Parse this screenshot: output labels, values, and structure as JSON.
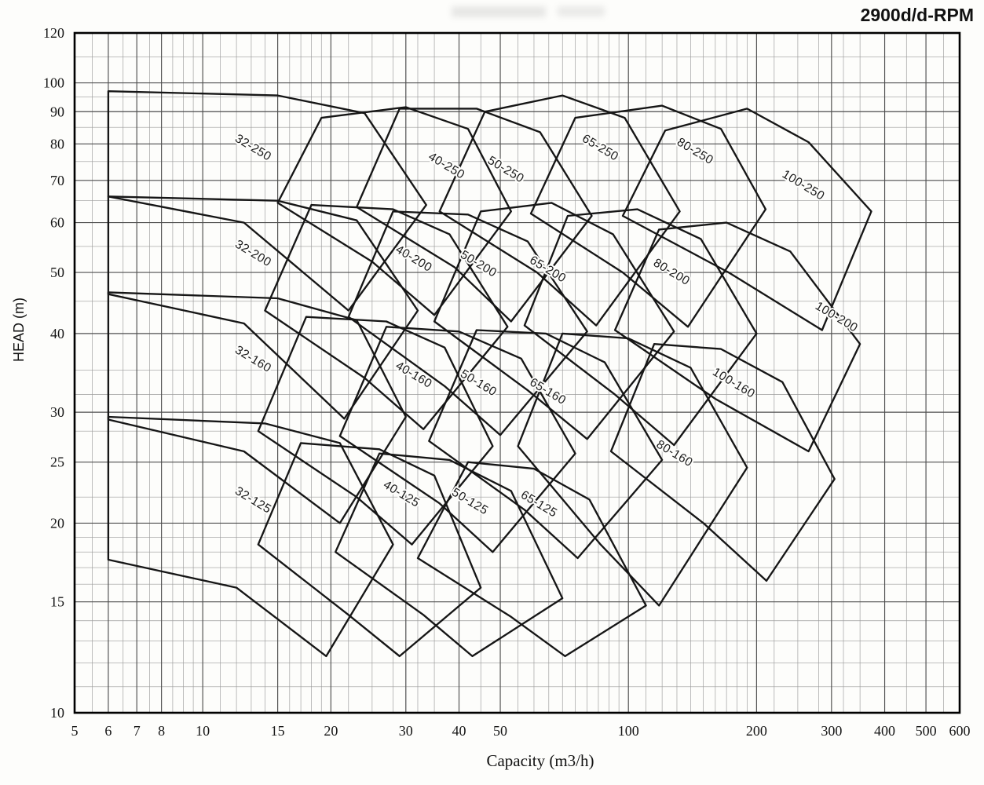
{
  "page": {
    "title": "2900d/d-RPM"
  },
  "chart_data": {
    "type": "line",
    "subtype": "pump-selection-envelope-map",
    "title": "2900d/d-RPM",
    "xlabel": "Capacity (m3/h)",
    "ylabel": "HEAD (m)",
    "x_scale": "log",
    "y_scale": "log",
    "xlim": [
      5,
      600
    ],
    "ylim": [
      10,
      120
    ],
    "x_ticks": [
      5,
      6,
      7,
      8,
      10,
      15,
      20,
      30,
      40,
      50,
      100,
      200,
      300,
      400,
      500,
      600
    ],
    "y_ticks": [
      10,
      15,
      20,
      25,
      30,
      40,
      50,
      60,
      70,
      80,
      90,
      100,
      120
    ],
    "grid": "on",
    "legend_position": "none",
    "label_angle": 31,
    "colors": {
      "ink": "#161616",
      "grid_minor": "#9a9a9a",
      "grid_major": "#4f4f4f",
      "border": "#000000",
      "paper": "#fdfdfb"
    },
    "envelopes": [
      {
        "label": "32-125",
        "label_pos": [
          13,
          21.5
        ],
        "points": [
          [
            6,
            29.5
          ],
          [
            14,
            28.8
          ],
          [
            21,
            26.8
          ],
          [
            28,
            18.5
          ],
          [
            19.5,
            12.3
          ],
          [
            12,
            15.8
          ],
          [
            6,
            17.5
          ]
        ]
      },
      {
        "label": "40-125",
        "label_pos": [
          29,
          22
        ],
        "points": [
          [
            17,
            26.8
          ],
          [
            26,
            26.2
          ],
          [
            35,
            23.8
          ],
          [
            45,
            15.8
          ],
          [
            29,
            12.3
          ],
          [
            22,
            14.3
          ],
          [
            13.5,
            18.5
          ]
        ]
      },
      {
        "label": "50-125",
        "label_pos": [
          42,
          21.4
        ],
        "points": [
          [
            26,
            25.8
          ],
          [
            38,
            25.2
          ],
          [
            53,
            22.5
          ],
          [
            70,
            15.2
          ],
          [
            43,
            12.3
          ],
          [
            33,
            14.3
          ],
          [
            20.5,
            18
          ]
        ]
      },
      {
        "label": "65-125",
        "label_pos": [
          61,
          21.2
        ],
        "points": [
          [
            42,
            25
          ],
          [
            60,
            24.4
          ],
          [
            81,
            21.8
          ],
          [
            110,
            14.8
          ],
          [
            71,
            12.3
          ],
          [
            53,
            14.2
          ],
          [
            32,
            17.6
          ]
        ]
      },
      {
        "label": "32-160",
        "label_pos": [
          13,
          36
        ],
        "points": [
          [
            6,
            46.5
          ],
          [
            15,
            45.5
          ],
          [
            23,
            42
          ],
          [
            30,
            29.5
          ],
          [
            21,
            20
          ],
          [
            12.5,
            26
          ],
          [
            6,
            29.2
          ]
        ]
      },
      {
        "label": "40-160",
        "label_pos": [
          31,
          34
        ],
        "points": [
          [
            17.5,
            42.5
          ],
          [
            27,
            41.8
          ],
          [
            37,
            38
          ],
          [
            48,
            26.5
          ],
          [
            31,
            18.5
          ],
          [
            23,
            22
          ],
          [
            13.5,
            28
          ]
        ]
      },
      {
        "label": "50-160",
        "label_pos": [
          44,
          33
        ],
        "points": [
          [
            27,
            41
          ],
          [
            40,
            40.3
          ],
          [
            56,
            36.5
          ],
          [
            75,
            25.8
          ],
          [
            48,
            18
          ],
          [
            36,
            21.5
          ],
          [
            21,
            27.5
          ]
        ]
      },
      {
        "label": "65-160",
        "label_pos": [
          64,
          32
        ],
        "points": [
          [
            44,
            40.5
          ],
          [
            64,
            40
          ],
          [
            88,
            36
          ],
          [
            120,
            25.2
          ],
          [
            76,
            17.6
          ],
          [
            57,
            21
          ],
          [
            34,
            27
          ]
        ]
      },
      {
        "label": "80-160",
        "label_pos": [
          127,
          25.5
        ],
        "points": [
          [
            70,
            40
          ],
          [
            100,
            39.3
          ],
          [
            140,
            35.3
          ],
          [
            190,
            24.5
          ],
          [
            118,
            14.8
          ],
          [
            86,
            18.5
          ],
          [
            55,
            26.5
          ]
        ]
      },
      {
        "label": "100-160",
        "label_pos": [
          175,
          33
        ],
        "points": [
          [
            115,
            38.5
          ],
          [
            165,
            37.8
          ],
          [
            230,
            33.5
          ],
          [
            305,
            23.5
          ],
          [
            211,
            16.2
          ],
          [
            150,
            20
          ],
          [
            91,
            26
          ]
        ]
      },
      {
        "label": "32-200",
        "label_pos": [
          13,
          53
        ],
        "points": [
          [
            6,
            66
          ],
          [
            15,
            65
          ],
          [
            23,
            60.5
          ],
          [
            32,
            43.5
          ],
          [
            21.5,
            29.3
          ],
          [
            12.5,
            41.5
          ],
          [
            6,
            46.2
          ]
        ]
      },
      {
        "label": "40-200",
        "label_pos": [
          31,
          52
        ],
        "points": [
          [
            18,
            64
          ],
          [
            28,
            63
          ],
          [
            38,
            57.5
          ],
          [
            52,
            41
          ],
          [
            33,
            28.2
          ],
          [
            24,
            34
          ],
          [
            14,
            43.5
          ]
        ]
      },
      {
        "label": "50-200",
        "label_pos": [
          44,
          51
        ],
        "points": [
          [
            28,
            62.5
          ],
          [
            42,
            61.8
          ],
          [
            58,
            56
          ],
          [
            80,
            40.3
          ],
          [
            50,
            27.6
          ],
          [
            37,
            33
          ],
          [
            22,
            42.5
          ]
        ]
      },
      {
        "label": "65-200",
        "label_pos": [
          64,
          50
        ],
        "points": [
          [
            45,
            62.5
          ],
          [
            66,
            64.5
          ],
          [
            92,
            57.5
          ],
          [
            128,
            40.3
          ],
          [
            80,
            27.2
          ],
          [
            58,
            32.5
          ],
          [
            35,
            41.8
          ]
        ]
      },
      {
        "label": "80-200",
        "label_pos": [
          125,
          49.5
        ],
        "points": [
          [
            72,
            61.5
          ],
          [
            105,
            63
          ],
          [
            148,
            56.5
          ],
          [
            200,
            40
          ],
          [
            128,
            26.6
          ],
          [
            93,
            32
          ],
          [
            57,
            41.2
          ]
        ]
      },
      {
        "label": "100-200",
        "label_pos": [
          305,
          42
        ],
        "points": [
          [
            118,
            58.5
          ],
          [
            170,
            60
          ],
          [
            240,
            54
          ],
          [
            350,
            38.5
          ],
          [
            265,
            26
          ],
          [
            160,
            31.5
          ],
          [
            93,
            40.5
          ]
        ]
      },
      {
        "label": "32-250",
        "label_pos": [
          13,
          78
        ],
        "points": [
          [
            6,
            97
          ],
          [
            15,
            95.5
          ],
          [
            24,
            89.5
          ],
          [
            33.5,
            64
          ],
          [
            22,
            43.5
          ],
          [
            12.5,
            60
          ],
          [
            6,
            66
          ]
        ]
      },
      {
        "label": "40-250",
        "label_pos": [
          37,
          73
        ],
        "points": [
          [
            19,
            88
          ],
          [
            30,
            91.5
          ],
          [
            42,
            84.5
          ],
          [
            53,
            62.5
          ],
          [
            35,
            42.8
          ],
          [
            25,
            52
          ],
          [
            15,
            64.5
          ]
        ]
      },
      {
        "label": "50-250",
        "label_pos": [
          51,
          72
        ],
        "points": [
          [
            29,
            91
          ],
          [
            44,
            91
          ],
          [
            62,
            83.5
          ],
          [
            82,
            61.5
          ],
          [
            53,
            41.8
          ],
          [
            39,
            51
          ],
          [
            23,
            63.5
          ]
        ]
      },
      {
        "label": "65-250",
        "label_pos": [
          85,
          78
        ],
        "points": [
          [
            46,
            90
          ],
          [
            70,
            95.5
          ],
          [
            98,
            88
          ],
          [
            132,
            62.5
          ],
          [
            84,
            41.2
          ],
          [
            61,
            50
          ],
          [
            36,
            62.5
          ]
        ]
      },
      {
        "label": "80-250",
        "label_pos": [
          142,
          77
        ],
        "points": [
          [
            75,
            88
          ],
          [
            120,
            92
          ],
          [
            165,
            84.5
          ],
          [
            210,
            63
          ],
          [
            138,
            41
          ],
          [
            97,
            50
          ],
          [
            59,
            62
          ]
        ]
      },
      {
        "label": "100-250",
        "label_pos": [
          255,
          68
        ],
        "points": [
          [
            122,
            84
          ],
          [
            190,
            91
          ],
          [
            265,
            80.5
          ],
          [
            372,
            62.5
          ],
          [
            285,
            40.5
          ],
          [
            172,
            50
          ],
          [
            97,
            61.5
          ]
        ]
      }
    ]
  }
}
